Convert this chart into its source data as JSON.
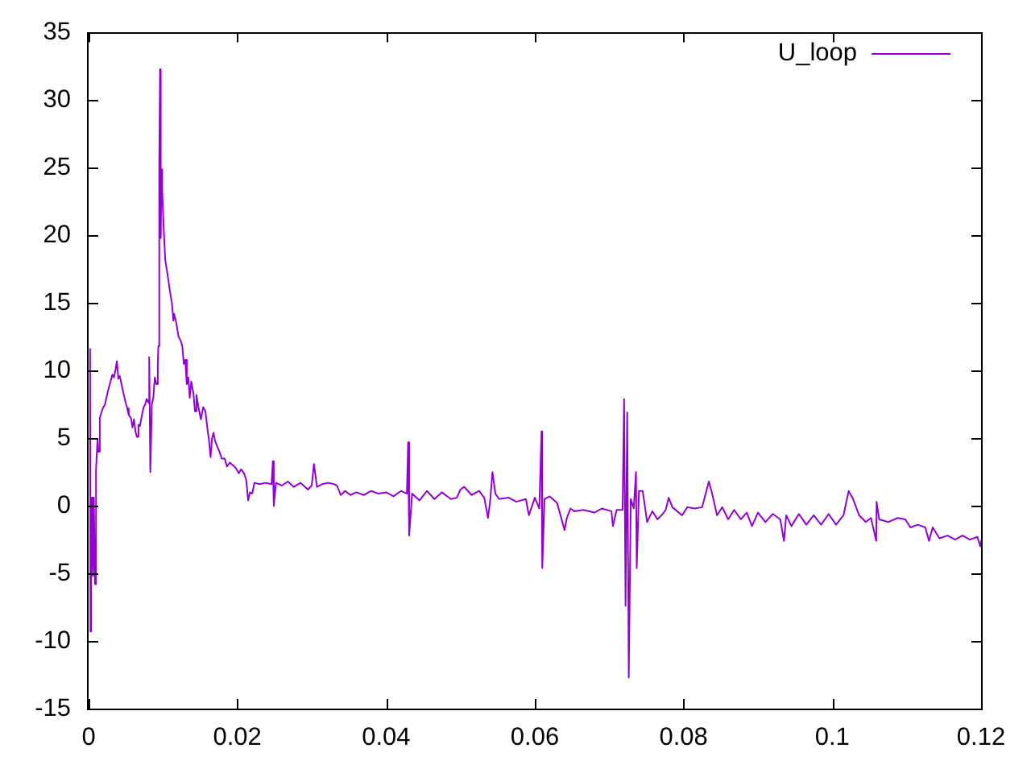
{
  "chart_data": {
    "type": "line",
    "legend": "top right",
    "marker": "none",
    "line_style": "solid",
    "grid": false,
    "xlim": [
      0,
      0.12
    ],
    "xticks": [
      0,
      0.02,
      0.04,
      0.06,
      0.08,
      0.1,
      0.12
    ],
    "ylim": [
      -15,
      35
    ],
    "yticks": [
      -15,
      -10,
      -5,
      0,
      5,
      10,
      15,
      20,
      25,
      30,
      35
    ],
    "x": [
      0.0002,
      0.00025,
      0.0003,
      0.0004,
      0.0005,
      0.0006,
      0.0007,
      0.00087,
      0.001,
      0.0012,
      0.0013,
      0.0015,
      0.0019,
      0.0022,
      0.0026,
      0.0029,
      0.0032,
      0.0034,
      0.0036,
      0.0038,
      0.004,
      0.0042,
      0.0045,
      0.0047,
      0.005,
      0.0052,
      0.0054,
      0.0057,
      0.0059,
      0.0061,
      0.0063,
      0.0065,
      0.0067,
      0.0069,
      0.0072,
      0.0074,
      0.0076,
      0.0078,
      0.0081,
      0.00815,
      0.0083,
      0.0085,
      0.0087,
      0.0089,
      0.0091,
      0.0093,
      0.00938,
      0.0095,
      0.0096,
      0.0097,
      0.0098,
      0.0099,
      0.0101,
      0.0103,
      0.0105,
      0.0107,
      0.0109,
      0.0112,
      0.0114,
      0.0115,
      0.0118,
      0.0121,
      0.0124,
      0.0126,
      0.0128,
      0.013,
      0.0132,
      0.0134,
      0.0136,
      0.0138,
      0.0141,
      0.0143,
      0.0145,
      0.0148,
      0.0151,
      0.0154,
      0.0157,
      0.016,
      0.0162,
      0.0164,
      0.0166,
      0.0168,
      0.017,
      0.0173,
      0.0176,
      0.0179,
      0.0183,
      0.0186,
      0.019,
      0.0194,
      0.0198,
      0.0202,
      0.0205,
      0.0209,
      0.0212,
      0.02145,
      0.0217,
      0.022,
      0.0223,
      0.023,
      0.0238,
      0.0246,
      0.02477,
      0.0249,
      0.0252,
      0.026,
      0.0268,
      0.0276,
      0.0285,
      0.0295,
      0.03,
      0.0303,
      0.0307,
      0.0314,
      0.0322,
      0.033,
      0.0334,
      0.0339,
      0.0345,
      0.0352,
      0.036,
      0.037,
      0.038,
      0.039,
      0.04,
      0.041,
      0.042,
      0.0428,
      0.04296,
      0.0431,
      0.0435,
      0.0445,
      0.0455,
      0.0465,
      0.0475,
      0.0487,
      0.0495,
      0.05,
      0.0505,
      0.0515,
      0.0525,
      0.0532,
      0.0537,
      0.054,
      0.0543,
      0.0547,
      0.0552,
      0.0565,
      0.0575,
      0.0588,
      0.0592,
      0.06,
      0.0606,
      0.0609,
      0.061,
      0.0613,
      0.062,
      0.063,
      0.0635,
      0.064,
      0.0643,
      0.0648,
      0.0653,
      0.0665,
      0.068,
      0.069,
      0.0703,
      0.0705,
      0.071,
      0.0718,
      0.072,
      0.0722,
      0.07242,
      0.07263,
      0.0729,
      0.0733,
      0.0736,
      0.0737,
      0.074,
      0.0745,
      0.0751,
      0.0758,
      0.0765,
      0.0772,
      0.0776,
      0.078,
      0.0785,
      0.0798,
      0.0805,
      0.0815,
      0.0825,
      0.0834,
      0.0838,
      0.0845,
      0.0852,
      0.086,
      0.0868,
      0.0877,
      0.0885,
      0.0892,
      0.09,
      0.091,
      0.092,
      0.093,
      0.0935,
      0.0938,
      0.0945,
      0.0955,
      0.0965,
      0.0975,
      0.0985,
      0.0995,
      0.1005,
      0.1015,
      0.1022,
      0.1028,
      0.1036,
      0.1045,
      0.1052,
      0.1059,
      0.10595,
      0.1063,
      0.1075,
      0.1088,
      0.1098,
      0.1105,
      0.1115,
      0.1125,
      0.113,
      0.1135,
      0.1144,
      0.1155,
      0.1165,
      0.1175,
      0.1185,
      0.1195,
      0.1199,
      0.12
    ],
    "series": [
      {
        "name": "U_loop",
        "color": "#9400d3",
        "values": [
          11.6,
          -9.3,
          0.6,
          -5.2,
          0.6,
          -5.2,
          0.6,
          -5.8,
          2.7,
          4.9,
          4.0,
          6.5,
          7.2,
          7.5,
          8.5,
          9.1,
          9.7,
          9.5,
          10.0,
          10.7,
          9.4,
          9.6,
          8.8,
          8.3,
          7.6,
          7.2,
          6.7,
          6.5,
          5.8,
          6.4,
          5.5,
          5.1,
          6.0,
          5.9,
          6.8,
          7.3,
          7.5,
          7.9,
          7.6,
          11.0,
          2.5,
          7.5,
          8.0,
          9.5,
          9.0,
          10.5,
          11.8,
          25.0,
          32.3,
          19.8,
          24.9,
          23.3,
          20.5,
          18.2,
          17.5,
          16.8,
          16.0,
          15.0,
          13.7,
          14.2,
          13.5,
          12.5,
          12.2,
          11.8,
          10.5,
          10.8,
          9.0,
          9.5,
          8.0,
          9.2,
          8.3,
          7.0,
          8.2,
          7.2,
          6.4,
          7.3,
          7.0,
          5.6,
          4.8,
          3.6,
          5.0,
          5.4,
          4.8,
          4.4,
          4.0,
          3.5,
          3.5,
          2.9,
          3.2,
          3.0,
          2.8,
          2.4,
          2.7,
          2.4,
          1.9,
          0.4,
          1.0,
          0.9,
          1.7,
          1.6,
          1.7,
          1.6,
          3.3,
          0.0,
          1.7,
          1.5,
          1.8,
          1.4,
          1.7,
          1.2,
          1.5,
          3.1,
          1.4,
          1.6,
          1.7,
          1.6,
          1.5,
          0.8,
          1.1,
          0.8,
          1.0,
          0.8,
          1.1,
          0.9,
          1.0,
          0.7,
          1.1,
          0.9,
          4.7,
          -2.2,
          0.9,
          0.4,
          1.1,
          0.5,
          1.0,
          0.5,
          0.6,
          1.2,
          1.4,
          0.8,
          1.1,
          0.6,
          -0.9,
          0.4,
          2.5,
          0.9,
          0.5,
          0.6,
          0.3,
          0.5,
          -0.7,
          0.6,
          -0.2,
          5.5,
          -4.6,
          0.5,
          0.7,
          0.2,
          -0.8,
          -1.8,
          -0.9,
          -0.2,
          -0.4,
          -0.3,
          -0.5,
          -0.2,
          -0.4,
          -1.5,
          -0.3,
          -0.3,
          7.9,
          -7.4,
          6.9,
          -12.7,
          0.5,
          -0.2,
          2.5,
          -4.6,
          1.1,
          1.1,
          -1.2,
          -0.4,
          -1.0,
          -0.6,
          -0.3,
          0.6,
          -0.1,
          -0.7,
          -0.1,
          -0.2,
          -0.1,
          1.8,
          1.0,
          -0.7,
          -0.1,
          -1.0,
          -0.3,
          -1.0,
          -0.5,
          -1.5,
          -0.5,
          -1.2,
          -0.6,
          -1.0,
          -2.6,
          -0.7,
          -1.5,
          -0.6,
          -1.4,
          -0.7,
          -1.4,
          -0.6,
          -1.4,
          -0.7,
          1.1,
          0.5,
          -0.7,
          -1.2,
          -0.9,
          -2.6,
          0.3,
          -1.0,
          -1.2,
          -0.9,
          -1.0,
          -1.6,
          -1.4,
          -1.6,
          -2.6,
          -1.6,
          -2.4,
          -2.2,
          -2.5,
          -2.2,
          -2.5,
          -2.3,
          -3.0,
          -2.6
        ]
      }
    ]
  }
}
